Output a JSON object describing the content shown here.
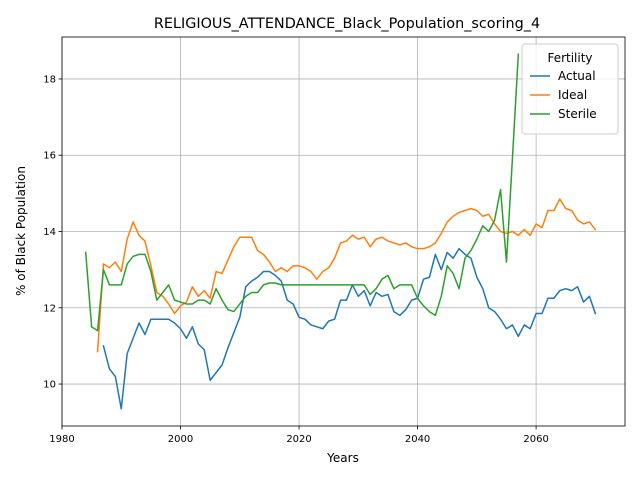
{
  "chart_data": {
    "type": "line",
    "title": "RELIGIOUS_ATTENDANCE_Black_Population_scoring_4",
    "xlabel": "Years",
    "ylabel": "% of Black Population",
    "xlim": [
      1980,
      2075
    ],
    "ylim": [
      8.9,
      19.1
    ],
    "xticks": [
      1980,
      2000,
      2020,
      2040,
      2060
    ],
    "yticks": [
      10,
      12,
      14,
      16,
      18
    ],
    "grid": true,
    "legend": {
      "title": "Fertility",
      "placement": "top-right"
    },
    "series": [
      {
        "name": "Actual",
        "color": "#1f77b4",
        "x": [
          1987,
          1988,
          1989,
          1990,
          1991,
          1992,
          1993,
          1994,
          1995,
          1996,
          1997,
          1998,
          1999,
          2000,
          2001,
          2002,
          2003,
          2004,
          2005,
          2006,
          2007,
          2008,
          2009,
          2010,
          2011,
          2012,
          2013,
          2014,
          2015,
          2016,
          2017,
          2018,
          2019,
          2020,
          2021,
          2022,
          2023,
          2024,
          2025,
          2026,
          2027,
          2028,
          2029,
          2030,
          2031,
          2032,
          2033,
          2034,
          2035,
          2036,
          2037,
          2038,
          2039,
          2040,
          2041,
          2042,
          2043,
          2044,
          2045,
          2046,
          2047,
          2048,
          2049,
          2050,
          2051,
          2052,
          2053,
          2054,
          2055,
          2056,
          2057,
          2058,
          2059,
          2060,
          2061,
          2062,
          2063,
          2064,
          2065,
          2066,
          2067,
          2068,
          2069,
          2070
        ],
        "y": [
          11.0,
          10.4,
          10.2,
          9.35,
          10.8,
          11.2,
          11.6,
          11.3,
          11.7,
          11.7,
          11.7,
          11.7,
          11.6,
          11.45,
          11.2,
          11.5,
          11.05,
          10.9,
          10.1,
          10.3,
          10.5,
          10.95,
          11.35,
          11.75,
          12.55,
          12.7,
          12.8,
          12.95,
          12.95,
          12.85,
          12.7,
          12.2,
          12.1,
          11.75,
          11.7,
          11.55,
          11.5,
          11.45,
          11.65,
          11.7,
          12.2,
          12.2,
          12.6,
          12.3,
          12.45,
          12.05,
          12.4,
          12.3,
          12.35,
          11.9,
          11.8,
          11.95,
          12.2,
          12.25,
          12.75,
          12.8,
          13.4,
          13.0,
          13.45,
          13.3,
          13.55,
          13.4,
          13.3,
          12.8,
          12.5,
          12.0,
          11.9,
          11.7,
          11.45,
          11.55,
          11.25,
          11.55,
          11.45,
          11.85,
          11.85,
          12.25,
          12.25,
          12.45,
          12.5,
          12.45,
          12.55,
          12.15,
          12.3,
          11.85
        ]
      },
      {
        "name": "Ideal",
        "color": "#ff7f0e",
        "x": [
          1986,
          1987,
          1988,
          1989,
          1990,
          1991,
          1992,
          1993,
          1994,
          1995,
          1996,
          1997,
          1998,
          1999,
          2000,
          2001,
          2002,
          2003,
          2004,
          2005,
          2006,
          2007,
          2008,
          2009,
          2010,
          2011,
          2012,
          2013,
          2014,
          2015,
          2016,
          2017,
          2018,
          2019,
          2020,
          2021,
          2022,
          2023,
          2024,
          2025,
          2026,
          2027,
          2028,
          2029,
          2030,
          2031,
          2032,
          2033,
          2034,
          2035,
          2036,
          2037,
          2038,
          2039,
          2040,
          2041,
          2042,
          2043,
          2044,
          2045,
          2046,
          2047,
          2048,
          2049,
          2050,
          2051,
          2052,
          2053,
          2054,
          2055,
          2056,
          2057,
          2058,
          2059,
          2060,
          2061,
          2062,
          2063,
          2064,
          2065,
          2066,
          2067,
          2068,
          2069,
          2070
        ],
        "y": [
          10.85,
          13.15,
          13.05,
          13.2,
          12.95,
          13.8,
          14.25,
          13.9,
          13.75,
          13.1,
          12.4,
          12.3,
          12.1,
          11.85,
          12.05,
          12.15,
          12.55,
          12.3,
          12.45,
          12.25,
          12.95,
          12.9,
          13.25,
          13.6,
          13.85,
          13.85,
          13.85,
          13.5,
          13.4,
          13.2,
          12.95,
          13.05,
          12.95,
          13.1,
          13.1,
          13.05,
          12.95,
          12.75,
          12.95,
          13.05,
          13.3,
          13.7,
          13.75,
          13.9,
          13.8,
          13.85,
          13.6,
          13.8,
          13.85,
          13.75,
          13.7,
          13.65,
          13.7,
          13.6,
          13.55,
          13.55,
          13.6,
          13.7,
          13.95,
          14.25,
          14.4,
          14.5,
          14.55,
          14.6,
          14.55,
          14.4,
          14.45,
          14.2,
          14.0,
          13.95,
          14.0,
          13.9,
          14.05,
          13.9,
          14.2,
          14.1,
          14.55,
          14.55,
          14.85,
          14.6,
          14.55,
          14.3,
          14.2,
          14.25,
          14.05
        ]
      },
      {
        "name": "Sterile",
        "color": "#2ca02c",
        "x": [
          1984,
          1985,
          1986,
          1987,
          1988,
          1989,
          1990,
          1991,
          1992,
          1993,
          1994,
          1995,
          1996,
          1997,
          1998,
          1999,
          2000,
          2001,
          2002,
          2003,
          2004,
          2005,
          2006,
          2007,
          2008,
          2009,
          2010,
          2011,
          2012,
          2013,
          2014,
          2015,
          2016,
          2017,
          2018,
          2019,
          2020,
          2021,
          2022,
          2023,
          2024,
          2025,
          2026,
          2027,
          2028,
          2029,
          2030,
          2031,
          2032,
          2033,
          2034,
          2035,
          2036,
          2037,
          2038,
          2039,
          2040,
          2041,
          2042,
          2043,
          2044,
          2045,
          2046,
          2047,
          2048,
          2049,
          2050,
          2051,
          2052,
          2053,
          2054,
          2055,
          2056,
          2057
        ],
        "y": [
          13.45,
          11.5,
          11.4,
          13.0,
          12.6,
          12.6,
          12.6,
          13.15,
          13.35,
          13.4,
          13.4,
          12.95,
          12.2,
          12.4,
          12.6,
          12.2,
          12.15,
          12.1,
          12.1,
          12.2,
          12.2,
          12.1,
          12.5,
          12.2,
          11.95,
          11.9,
          12.1,
          12.3,
          12.4,
          12.4,
          12.6,
          12.65,
          12.65,
          12.6,
          12.6,
          12.6,
          12.6,
          12.6,
          12.6,
          12.6,
          12.6,
          12.6,
          12.6,
          12.6,
          12.6,
          12.6,
          12.6,
          12.6,
          12.35,
          12.5,
          12.75,
          12.85,
          12.5,
          12.6,
          12.6,
          12.6,
          12.25,
          12.05,
          11.9,
          11.8,
          12.3,
          13.1,
          12.9,
          12.5,
          13.3,
          13.5,
          13.8,
          14.15,
          14.0,
          14.3,
          15.1,
          13.2,
          15.9,
          18.65
        ]
      }
    ]
  }
}
